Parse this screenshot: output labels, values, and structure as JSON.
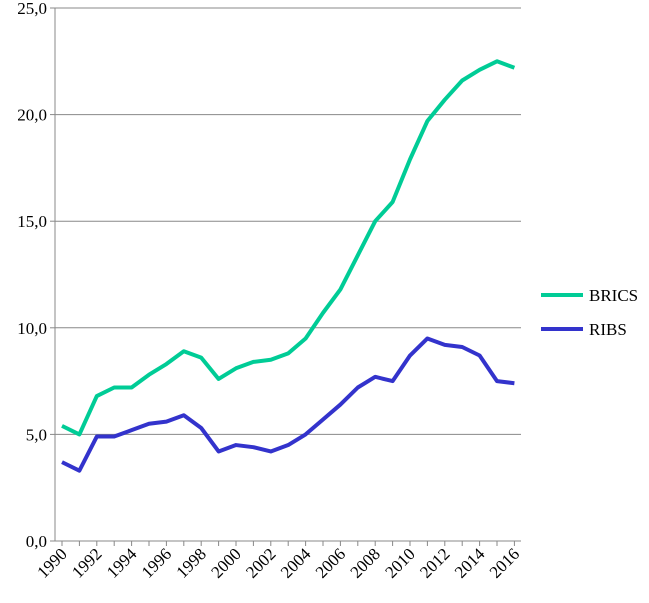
{
  "chart_data": {
    "type": "line",
    "x": [
      1990,
      1991,
      1992,
      1993,
      1994,
      1995,
      1996,
      1997,
      1998,
      1999,
      2000,
      2001,
      2002,
      2003,
      2004,
      2005,
      2006,
      2007,
      2008,
      2009,
      2010,
      2011,
      2012,
      2013,
      2014,
      2015,
      2016
    ],
    "x_tick_labels": [
      "1990",
      "1992",
      "1994",
      "1996",
      "1998",
      "2000",
      "2002",
      "2004",
      "2006",
      "2008",
      "2010",
      "2012",
      "2014",
      "2016"
    ],
    "y_tick_labels": [
      "0,0",
      "5,0",
      "10,0",
      "15,0",
      "20,0",
      "25,0"
    ],
    "ylim": [
      0,
      25
    ],
    "grid": true,
    "legend_position": "right",
    "series": [
      {
        "name": "BRICS",
        "color": "#00CC96",
        "values": [
          5.4,
          5.0,
          6.8,
          7.2,
          7.2,
          7.8,
          8.3,
          8.9,
          8.6,
          7.6,
          8.1,
          8.4,
          8.5,
          8.8,
          9.5,
          10.7,
          11.8,
          13.4,
          15.0,
          15.9,
          17.9,
          19.7,
          20.7,
          21.6,
          22.1,
          22.5,
          22.2
        ]
      },
      {
        "name": "RIBS",
        "color": "#3333CC",
        "values": [
          3.7,
          3.3,
          4.9,
          4.9,
          5.2,
          5.5,
          5.6,
          5.9,
          5.3,
          4.2,
          4.5,
          4.4,
          4.2,
          4.5,
          5.0,
          5.7,
          6.4,
          7.2,
          7.7,
          7.5,
          8.7,
          9.5,
          9.2,
          9.1,
          8.7,
          7.5,
          7.4
        ]
      }
    ]
  }
}
